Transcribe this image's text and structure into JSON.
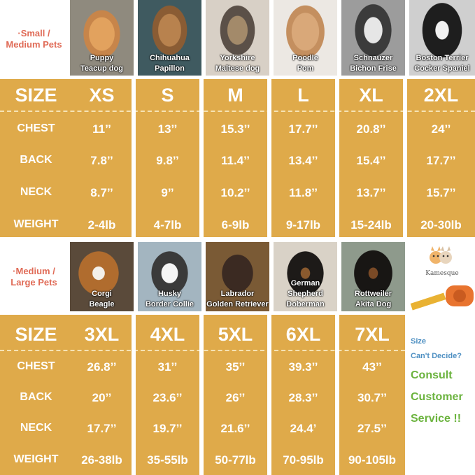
{
  "colors": {
    "gold": "#dfaa4a",
    "section_label": "#e06b57",
    "cta_blue": "#4d8fc2",
    "cta_green": "#6bb33e"
  },
  "section1": {
    "label_line1": "·Small /",
    "label_line2": "Medium Pets",
    "breeds": [
      {
        "line1": "Puppy",
        "line2": "Teacup dog",
        "icon": "dog-photo-puppy"
      },
      {
        "line1": "Chihuahua",
        "line2": "Papillon",
        "icon": "dog-photo-chihuahua"
      },
      {
        "line1": "Yorkshire",
        "line2": "Maltese dog",
        "icon": "dog-photo-yorkshire"
      },
      {
        "line1": "Poodle",
        "line2": "Pom",
        "icon": "dog-photo-poodle"
      },
      {
        "line1": "Schnauzer",
        "line2": "Bichon Frise",
        "icon": "dog-photo-schnauzer"
      },
      {
        "line1": "Boston Terrier",
        "line2": "Cocker Spaniel",
        "icon": "dog-photo-boston-terrier"
      }
    ],
    "size_header": "SIZE",
    "sizes": [
      "XS",
      "S",
      "M",
      "L",
      "XL",
      "2XL"
    ],
    "rows": [
      {
        "label": "CHEST",
        "values": [
          "11’’",
          "13’’",
          "15.3’’",
          "17.7’’",
          "20.8’’",
          "24’’"
        ]
      },
      {
        "label": "BACK",
        "values": [
          "7.8’’",
          "9.8’’",
          "11.4’’",
          "13.4’’",
          "15.4’’",
          "17.7’’"
        ]
      },
      {
        "label": "NECK",
        "values": [
          "8.7’’",
          "9’’",
          "10.2’’",
          "11.8’’",
          "13.7’’",
          "15.7’’"
        ]
      },
      {
        "label": "WEIGHT",
        "values": [
          "2-4lb",
          "4-7lb",
          "6-9lb",
          "9-17lb",
          "15-24lb",
          "20-30lb"
        ]
      }
    ]
  },
  "section2": {
    "label_line1": "·Medium /",
    "label_line2": "Large Pets",
    "breeds": [
      {
        "line1": "Corgi",
        "line2": "Beagle",
        "icon": "dog-photo-beagle"
      },
      {
        "line1": "Husky",
        "line2": "Border Collie",
        "icon": "dog-photo-husky"
      },
      {
        "line1": "Labrador",
        "line2": "Golden Retriever",
        "icon": "dog-photo-labrador"
      },
      {
        "line1": "German Shepherd",
        "line2": "Doberman",
        "icon": "dog-photo-doberman"
      },
      {
        "line1": "Rottweiler",
        "line2": "Akita Dog",
        "icon": "dog-photo-rottweiler"
      }
    ],
    "brand": "Kamesque",
    "size_header": "SIZE",
    "sizes": [
      "3XL",
      "4XL",
      "5XL",
      "6XL",
      "7XL"
    ],
    "rows": [
      {
        "label": "CHEST",
        "values": [
          "26.8’’",
          "31’’",
          "35’’",
          "39.3’’",
          "43’’"
        ]
      },
      {
        "label": "BACK",
        "values": [
          "20’’",
          "23.6’’",
          "26’’",
          "28.3’’",
          "30.7’’"
        ]
      },
      {
        "label": "NECK",
        "values": [
          "17.7’’",
          "19.7’’",
          "21.6’’",
          "24.4’",
          "27.5’’"
        ]
      },
      {
        "label": "WEIGHT",
        "values": [
          "26-38lb",
          "35-55lb",
          "50-77lb",
          "70-95lb",
          "90-105lb"
        ]
      }
    ]
  },
  "cta": {
    "line1": "Size",
    "line2": "Can't Decide?",
    "line3": "Consult",
    "line4": "Customer",
    "line5": "Service !!"
  }
}
